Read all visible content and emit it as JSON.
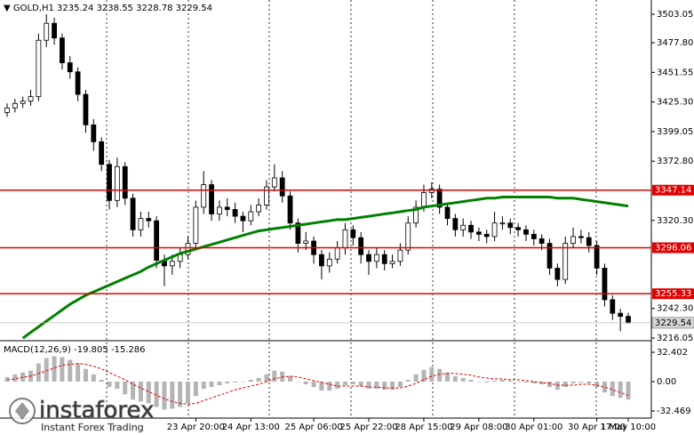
{
  "chart_data": [
    {
      "type": "candlestick",
      "title": "GOLD,H1",
      "categories": [
        null,
        null,
        null,
        null,
        null,
        null,
        null,
        null,
        null,
        null,
        null,
        null,
        null,
        null,
        null,
        null,
        null,
        null,
        null,
        null,
        null,
        null,
        null,
        null,
        "23 Apr 20:00",
        null,
        null,
        null,
        null,
        null,
        null,
        "24 Apr 13:00",
        null,
        null,
        null,
        null,
        null,
        null,
        null,
        "25 Apr 06:00",
        null,
        null,
        null,
        null,
        null,
        null,
        "25 Apr 22:00",
        null,
        null,
        null,
        null,
        null,
        null,
        "28 Apr 15:00",
        null,
        null,
        null,
        null,
        null,
        null,
        "29 Apr 08:00",
        null,
        null,
        null,
        null,
        null,
        null,
        "30 Apr 01:00",
        null,
        null,
        null,
        null,
        null,
        null,
        null,
        "30 Apr 17:00",
        null,
        null,
        null,
        "1 May 10:00"
      ],
      "open": [
        3416,
        3420,
        3424,
        3426,
        3430,
        3480,
        3495,
        3482,
        3460,
        3452,
        3432,
        3405,
        3390,
        3370,
        3338,
        3368,
        3340,
        3312,
        3322,
        3320,
        3285,
        3280,
        3284,
        3290,
        3300,
        3332,
        3352,
        3326,
        3332,
        3330,
        3324,
        3320,
        3328,
        3334,
        3350,
        3358,
        3342,
        3318,
        3300,
        3302,
        3290,
        3280,
        3286,
        3296,
        3312,
        3305,
        3290,
        3284,
        3290,
        3282,
        3284,
        3294,
        3318,
        3332,
        3345,
        3348,
        3332,
        3322,
        3312,
        3316,
        3310,
        3308,
        3306,
        3318,
        3318,
        3314,
        3312,
        3308,
        3304,
        3300,
        3278,
        3268,
        3300,
        3306,
        3305,
        3298,
        3278,
        3250,
        3238,
        3235.24
      ],
      "high": [
        3424,
        3428,
        3430,
        3436,
        3486,
        3503,
        3500,
        3486,
        3466,
        3456,
        3436,
        3410,
        3394,
        3374,
        3376,
        3372,
        3344,
        3328,
        3328,
        3324,
        3290,
        3290,
        3296,
        3306,
        3338,
        3364,
        3356,
        3338,
        3340,
        3336,
        3328,
        3334,
        3340,
        3356,
        3370,
        3364,
        3346,
        3322,
        3310,
        3306,
        3294,
        3292,
        3302,
        3318,
        3316,
        3310,
        3294,
        3296,
        3294,
        3290,
        3300,
        3324,
        3338,
        3352,
        3354,
        3352,
        3336,
        3326,
        3322,
        3320,
        3314,
        3312,
        3328,
        3324,
        3322,
        3318,
        3316,
        3312,
        3308,
        3304,
        3282,
        3306,
        3314,
        3312,
        3310,
        3302,
        3282,
        3254,
        3242,
        3238.55
      ],
      "low": [
        3412,
        3416,
        3420,
        3422,
        3426,
        3474,
        3476,
        3454,
        3446,
        3426,
        3398,
        3382,
        3364,
        3330,
        3332,
        3334,
        3306,
        3306,
        3314,
        3278,
        3262,
        3272,
        3278,
        3286,
        3296,
        3326,
        3320,
        3320,
        3324,
        3318,
        3310,
        3316,
        3324,
        3330,
        3346,
        3336,
        3312,
        3292,
        3294,
        3282,
        3268,
        3274,
        3282,
        3290,
        3298,
        3282,
        3272,
        3278,
        3276,
        3278,
        3280,
        3290,
        3314,
        3328,
        3340,
        3326,
        3316,
        3306,
        3306,
        3304,
        3302,
        3300,
        3302,
        3312,
        3308,
        3306,
        3302,
        3298,
        3294,
        3272,
        3262,
        3264,
        3296,
        3300,
        3292,
        3272,
        3244,
        3232,
        3222,
        3228.78
      ],
      "close": [
        3420,
        3424,
        3426,
        3430,
        3480,
        3495,
        3482,
        3460,
        3452,
        3432,
        3405,
        3390,
        3370,
        3338,
        3368,
        3340,
        3312,
        3322,
        3320,
        3285,
        3280,
        3284,
        3290,
        3300,
        3332,
        3352,
        3326,
        3332,
        3330,
        3324,
        3320,
        3328,
        3334,
        3350,
        3358,
        3342,
        3318,
        3300,
        3302,
        3290,
        3280,
        3286,
        3296,
        3312,
        3305,
        3290,
        3284,
        3290,
        3282,
        3284,
        3294,
        3318,
        3332,
        3345,
        3348,
        3332,
        3322,
        3312,
        3316,
        3310,
        3308,
        3306,
        3318,
        3318,
        3314,
        3312,
        3308,
        3304,
        3300,
        3278,
        3268,
        3300,
        3306,
        3305,
        3298,
        3278,
        3250,
        3238,
        3235.24,
        3229.54
      ],
      "candle_color": "#000000",
      "ma_color": "#008000",
      "ma_values": [
        null,
        null,
        3216,
        3221,
        3226,
        3231,
        3236,
        3241,
        3246,
        3250,
        3254,
        3257,
        3260,
        3263,
        3266,
        3269,
        3272,
        3275,
        3279,
        3282,
        3285,
        3288,
        3291,
        3293,
        3295,
        3297,
        3299,
        3301,
        3303,
        3305,
        3307,
        3309,
        3311,
        3312,
        3313,
        3314,
        3315,
        3316,
        3317,
        3318,
        3319,
        3320,
        3321,
        3321,
        3322,
        3323,
        3324,
        3325,
        3326,
        3327,
        3328,
        3329,
        3330,
        3332,
        3333,
        3334,
        3335,
        3336,
        3337,
        3338,
        3339,
        3340,
        3340,
        3341,
        3341,
        3341,
        3341,
        3341,
        3341,
        3341,
        3340,
        3340,
        3340,
        3339,
        3338,
        3337,
        3336,
        3335,
        3334,
        3333
      ],
      "levels": [
        3347.14,
        3296.06,
        3255.33
      ],
      "level_color": "#e00000",
      "ylim": [
        3214.47,
        3509.36
      ],
      "yticks": [
        3503.05,
        {
          "value": 3477.8,
          "label": "3477.80"
        },
        3451.55,
        {
          "value": 3425.3,
          "label": "3425.30"
        },
        3399.05,
        {
          "value": 3372.8,
          "label": "3372.80"
        },
        {
          "value": 3320.3,
          "label": "3320.30"
        },
        {
          "value": 3242.3,
          "label": "3242.30"
        },
        3216.05
      ]
    },
    {
      "type": "macd",
      "title": "MACD(12,26,9)",
      "histogram_color": "#b4b4b4",
      "signal_color": "#e00000",
      "histogram": [
        5,
        8,
        10,
        12,
        20,
        26,
        28,
        27,
        24,
        20,
        14,
        8,
        2,
        -6,
        -8,
        -14,
        -20,
        -22,
        -24,
        -28,
        -31,
        -30,
        -28,
        -24,
        -16,
        -8,
        -6,
        -4,
        -2,
        -1,
        0,
        2,
        4,
        8,
        12,
        11,
        6,
        0,
        -3,
        -6,
        -10,
        -10,
        -8,
        -4,
        -3,
        -5,
        -8,
        -8,
        -9,
        -9,
        -6,
        2,
        8,
        13,
        16,
        14,
        10,
        6,
        4,
        2,
        0,
        -1,
        1,
        2,
        1,
        0,
        -1,
        -2,
        -3,
        -6,
        -9,
        -6,
        -2,
        -1,
        -2,
        -6,
        -12,
        -16,
        -18,
        -19.805
      ],
      "signal": [
        2,
        3,
        5,
        6,
        9,
        12,
        15,
        18,
        19,
        20,
        19,
        17,
        14,
        10,
        6,
        2,
        -3,
        -7,
        -11,
        -15,
        -19,
        -22,
        -24,
        -25,
        -24,
        -21,
        -18,
        -15,
        -12,
        -9,
        -7,
        -5,
        -3,
        0,
        3,
        5,
        6,
        5,
        3,
        1,
        -1,
        -3,
        -5,
        -5,
        -5,
        -5,
        -6,
        -6,
        -7,
        -7,
        -7,
        -5,
        -2,
        2,
        6,
        8,
        9,
        9,
        8,
        7,
        5,
        4,
        3,
        3,
        2,
        2,
        1,
        0,
        -1,
        -2,
        -4,
        -4,
        -4,
        -3,
        -3,
        -4,
        -6,
        -9,
        -12,
        -15.286
      ],
      "ylim": [
        -38.37,
        43.21
      ],
      "yticks": [
        32.402,
        {
          "value": 0,
          "label": "0.00"
        },
        -32.469
      ]
    }
  ],
  "branding": {
    "name": "instaforex",
    "tagline": "Instant Forex Trading"
  }
}
